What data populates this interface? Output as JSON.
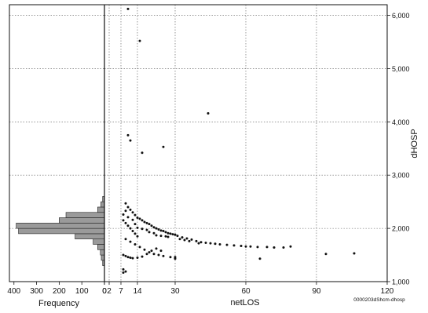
{
  "chart_data": {
    "type": "scatter",
    "title": "",
    "xlabel": "netLOS",
    "ylabel": "dHOSP",
    "xlim": [
      0,
      120
    ],
    "ylim": [
      1000,
      6200
    ],
    "x_ticks": [
      0,
      2,
      7,
      14,
      30,
      60,
      90,
      120
    ],
    "x_tick_labels": [
      "0",
      "2",
      "7",
      "14",
      "30",
      "60",
      "90",
      "120"
    ],
    "y_ticks": [
      1000,
      2000,
      3000,
      4000,
      5000,
      6000
    ],
    "y_tick_labels": [
      "1,000",
      "2,000",
      "3,000",
      "4,000",
      "5,000",
      "6,000"
    ],
    "grid": true,
    "points": [
      {
        "x": 10,
        "y": 6120
      },
      {
        "x": 15,
        "y": 5520
      },
      {
        "x": 44,
        "y": 4160
      },
      {
        "x": 10,
        "y": 3750
      },
      {
        "x": 11,
        "y": 3650
      },
      {
        "x": 16,
        "y": 3420
      },
      {
        "x": 25,
        "y": 3530
      },
      {
        "x": 9,
        "y": 2470
      },
      {
        "x": 10,
        "y": 2400
      },
      {
        "x": 11,
        "y": 2350
      },
      {
        "x": 12,
        "y": 2300
      },
      {
        "x": 8,
        "y": 2260
      },
      {
        "x": 13,
        "y": 2250
      },
      {
        "x": 14,
        "y": 2200
      },
      {
        "x": 15,
        "y": 2180
      },
      {
        "x": 16,
        "y": 2150
      },
      {
        "x": 17,
        "y": 2120
      },
      {
        "x": 18,
        "y": 2100
      },
      {
        "x": 19,
        "y": 2080
      },
      {
        "x": 20,
        "y": 2050
      },
      {
        "x": 21,
        "y": 2020
      },
      {
        "x": 22,
        "y": 2000
      },
      {
        "x": 23,
        "y": 1980
      },
      {
        "x": 24,
        "y": 1960
      },
      {
        "x": 25,
        "y": 1950
      },
      {
        "x": 26,
        "y": 1930
      },
      {
        "x": 27,
        "y": 1910
      },
      {
        "x": 28,
        "y": 1900
      },
      {
        "x": 29,
        "y": 1890
      },
      {
        "x": 30,
        "y": 1880
      },
      {
        "x": 31,
        "y": 1860
      },
      {
        "x": 33,
        "y": 1830
      },
      {
        "x": 35,
        "y": 1810
      },
      {
        "x": 37,
        "y": 1790
      },
      {
        "x": 39,
        "y": 1760
      },
      {
        "x": 41,
        "y": 1740
      },
      {
        "x": 43,
        "y": 1730
      },
      {
        "x": 45,
        "y": 1720
      },
      {
        "x": 47,
        "y": 1710
      },
      {
        "x": 49,
        "y": 1700
      },
      {
        "x": 52,
        "y": 1690
      },
      {
        "x": 55,
        "y": 1680
      },
      {
        "x": 58,
        "y": 1670
      },
      {
        "x": 60,
        "y": 1660
      },
      {
        "x": 62,
        "y": 1660
      },
      {
        "x": 65,
        "y": 1650
      },
      {
        "x": 69,
        "y": 1650
      },
      {
        "x": 72,
        "y": 1640
      },
      {
        "x": 76,
        "y": 1640
      },
      {
        "x": 79,
        "y": 1660
      },
      {
        "x": 8,
        "y": 2150
      },
      {
        "x": 9,
        "y": 2100
      },
      {
        "x": 10,
        "y": 2050
      },
      {
        "x": 11,
        "y": 2000
      },
      {
        "x": 12,
        "y": 1950
      },
      {
        "x": 13,
        "y": 1900
      },
      {
        "x": 14,
        "y": 1850
      },
      {
        "x": 9,
        "y": 1800
      },
      {
        "x": 11,
        "y": 1750
      },
      {
        "x": 13,
        "y": 1700
      },
      {
        "x": 15,
        "y": 1650
      },
      {
        "x": 17,
        "y": 1600
      },
      {
        "x": 19,
        "y": 1550
      },
      {
        "x": 21,
        "y": 1520
      },
      {
        "x": 23,
        "y": 1500
      },
      {
        "x": 25,
        "y": 1480
      },
      {
        "x": 28,
        "y": 1460
      },
      {
        "x": 30,
        "y": 1460
      },
      {
        "x": 30,
        "y": 1430
      },
      {
        "x": 8,
        "y": 1500
      },
      {
        "x": 9,
        "y": 1480
      },
      {
        "x": 10,
        "y": 1460
      },
      {
        "x": 11,
        "y": 1450
      },
      {
        "x": 12,
        "y": 1440
      },
      {
        "x": 14,
        "y": 1450
      },
      {
        "x": 16,
        "y": 1470
      },
      {
        "x": 18,
        "y": 1520
      },
      {
        "x": 20,
        "y": 1580
      },
      {
        "x": 22,
        "y": 1620
      },
      {
        "x": 24,
        "y": 1580
      },
      {
        "x": 8,
        "y": 1230
      },
      {
        "x": 9,
        "y": 1190
      },
      {
        "x": 8,
        "y": 1170
      },
      {
        "x": 66,
        "y": 1430
      },
      {
        "x": 94,
        "y": 1520
      },
      {
        "x": 106,
        "y": 1530
      },
      {
        "x": 9,
        "y": 2330
      },
      {
        "x": 10,
        "y": 2210
      },
      {
        "x": 12,
        "y": 2160
      },
      {
        "x": 13,
        "y": 2080
      },
      {
        "x": 14,
        "y": 2010
      },
      {
        "x": 16,
        "y": 1990
      },
      {
        "x": 18,
        "y": 1970
      },
      {
        "x": 19,
        "y": 1930
      },
      {
        "x": 21,
        "y": 1910
      },
      {
        "x": 22,
        "y": 1870
      },
      {
        "x": 24,
        "y": 1860
      },
      {
        "x": 26,
        "y": 1850
      },
      {
        "x": 27,
        "y": 1840
      },
      {
        "x": 32,
        "y": 1800
      },
      {
        "x": 34,
        "y": 1780
      },
      {
        "x": 36,
        "y": 1760
      },
      {
        "x": 40,
        "y": 1720
      }
    ],
    "marginal_histogram": {
      "axis": "y",
      "xlabel": "Frequency",
      "x_ticks": [
        400,
        300,
        200,
        100,
        0
      ],
      "x_tick_labels": [
        "400",
        "300",
        "200",
        "100",
        "0"
      ],
      "xlim": [
        0,
        420
      ],
      "bin_width": 100,
      "bins": [
        {
          "y0": 1300,
          "count": 8
        },
        {
          "y0": 1400,
          "count": 14
        },
        {
          "y0": 1500,
          "count": 18
        },
        {
          "y0": 1600,
          "count": 30
        },
        {
          "y0": 1700,
          "count": 50
        },
        {
          "y0": 1800,
          "count": 130
        },
        {
          "y0": 1900,
          "count": 380
        },
        {
          "y0": 2000,
          "count": 390
        },
        {
          "y0": 2100,
          "count": 200
        },
        {
          "y0": 2200,
          "count": 170
        },
        {
          "y0": 2300,
          "count": 30
        },
        {
          "y0": 2400,
          "count": 16
        },
        {
          "y0": 2500,
          "count": 8
        }
      ]
    },
    "corner_label": "0000203dShcm-dhosp"
  }
}
